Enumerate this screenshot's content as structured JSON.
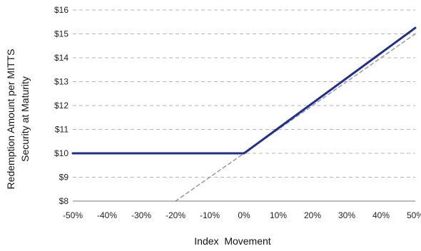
{
  "chart_data": {
    "type": "line",
    "title": "",
    "xlabel": "Index  Movement",
    "ylabel": [
      "Redemption Amount per MITTS",
      "Security at Maturity"
    ],
    "x_ticks": [
      "-50%",
      "-40%",
      "-30%",
      "-20%",
      "-10%",
      "0%",
      "10%",
      "20%",
      "30%",
      "40%",
      "50%"
    ],
    "y_ticks": [
      "$8",
      "$9",
      "$10",
      "$11",
      "$12",
      "$13",
      "$14",
      "$15",
      "$16"
    ],
    "xlim": [
      -50,
      50
    ],
    "ylim": [
      8,
      16
    ],
    "grid": "horizontal dashed",
    "legend": "none",
    "series": [
      {
        "style": "solid",
        "color": "#1f2f8f",
        "x": [
          -50,
          0,
          50
        ],
        "y": [
          10,
          10,
          15.25
        ]
      },
      {
        "style": "dashed",
        "color": "#9a9a9a",
        "x": [
          -20,
          50
        ],
        "y": [
          8,
          15
        ]
      }
    ]
  }
}
